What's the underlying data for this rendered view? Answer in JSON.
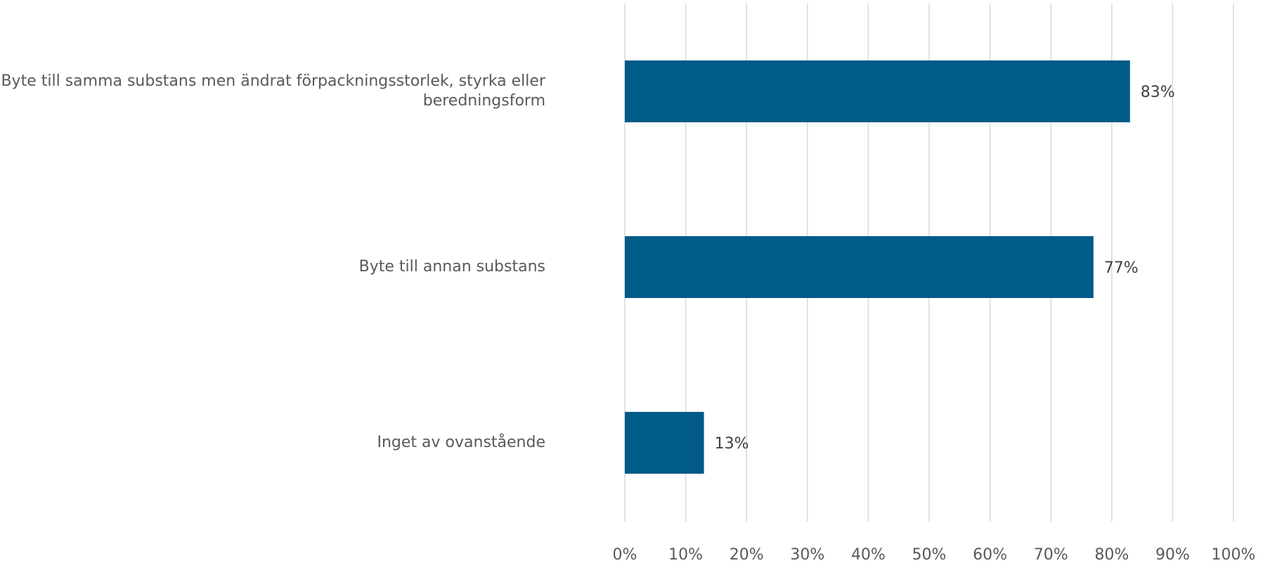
{
  "chart_data": {
    "type": "bar",
    "orientation": "horizontal",
    "categories": [
      "Byte till samma substans men ändrat förpackningsstorlek, styrka eller beredningsform",
      "Byte till annan substans",
      "Inget av ovanstående"
    ],
    "values": [
      83,
      77,
      13
    ],
    "data_labels": [
      "83%",
      "77%",
      "13%"
    ],
    "x_ticks": [
      0,
      10,
      20,
      30,
      40,
      50,
      60,
      70,
      80,
      90,
      100
    ],
    "x_tick_labels": [
      "0%",
      "10%",
      "20%",
      "30%",
      "40%",
      "50%",
      "60%",
      "70%",
      "80%",
      "90%",
      "100%"
    ],
    "xlim": [
      0,
      100
    ],
    "grid": "vertical",
    "bar_color": "#005b88",
    "grid_color": "#d9d9d9"
  }
}
